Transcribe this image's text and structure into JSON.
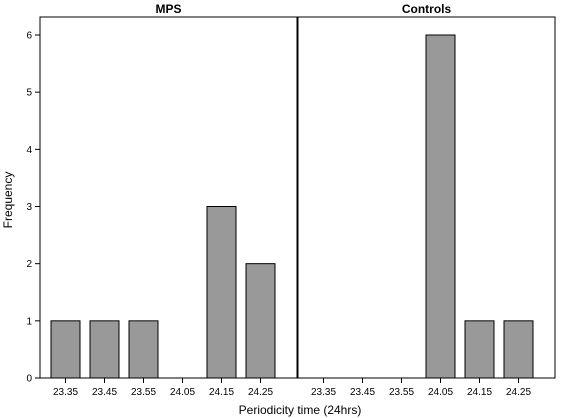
{
  "chart_data": {
    "type": "bar",
    "ylabel": "Frequency",
    "xlabel": "Periodicity time (24hrs)",
    "ylim": [
      0,
      6
    ],
    "y_ticks": [
      0,
      1,
      2,
      3,
      4,
      5,
      6
    ],
    "categories": [
      "23.35",
      "23.45",
      "23.55",
      "24.05",
      "24.15",
      "24.25"
    ],
    "bar_color": "#999999",
    "grid": false,
    "panels": [
      {
        "title": "MPS",
        "values": [
          1,
          1,
          1,
          0,
          3,
          2
        ]
      },
      {
        "title": "Controls",
        "values": [
          0,
          0,
          0,
          6,
          1,
          1
        ]
      }
    ]
  }
}
